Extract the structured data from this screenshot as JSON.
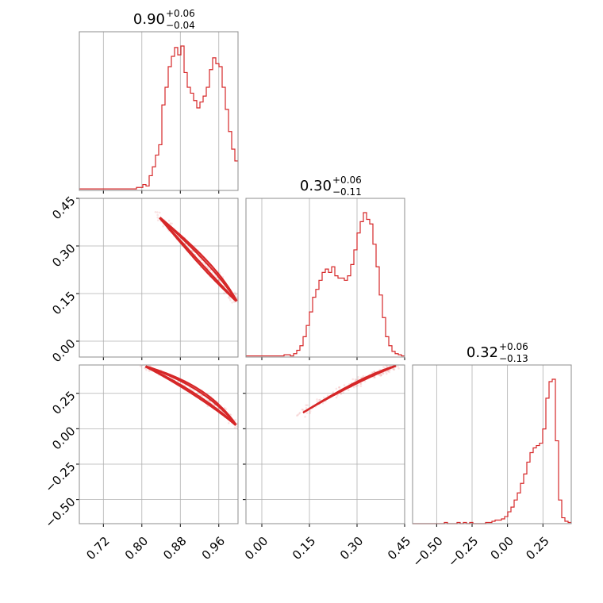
{
  "chart_data": {
    "type": "corner",
    "color": "#d62728",
    "grid": true,
    "params": [
      {
        "axis": "x",
        "title": {
          "main": "0.90",
          "plus": "+0.06",
          "minus": "−0.04"
        },
        "range": [
          0.67,
          1.0
        ],
        "ticks": [
          0.72,
          0.8,
          0.88,
          0.96
        ],
        "tick_labels": [
          "0.72",
          "0.80",
          "0.88",
          "0.96"
        ],
        "hist": {
          "range": [
            0.67,
            1.0
          ],
          "bins": 50,
          "counts": [
            1,
            1,
            1,
            1,
            1,
            1,
            1,
            1,
            1,
            1,
            1,
            1,
            1,
            1,
            1,
            1,
            1,
            1,
            2,
            2,
            4,
            3,
            10,
            16,
            24,
            31,
            58,
            70,
            84,
            91,
            97,
            92,
            98,
            80,
            70,
            66,
            61,
            56,
            60,
            64,
            70,
            82,
            90,
            86,
            84,
            70,
            55,
            40,
            28,
            20
          ]
        }
      },
      {
        "axis": "y",
        "title": {
          "main": "0.30",
          "plus": "+0.06",
          "minus": "−0.11"
        },
        "range": [
          -0.05,
          0.45
        ],
        "ticks": [
          0.0,
          0.15,
          0.3,
          0.45
        ],
        "tick_labels": [
          "0.00",
          "0.15",
          "0.30",
          "0.45"
        ],
        "hist": {
          "range": [
            -0.05,
            0.45
          ],
          "bins": 50,
          "counts": [
            1,
            1,
            1,
            1,
            1,
            1,
            1,
            1,
            1,
            1,
            1,
            1,
            2,
            2,
            1,
            3,
            6,
            10,
            18,
            28,
            40,
            53,
            60,
            68,
            75,
            78,
            75,
            80,
            72,
            70,
            70,
            68,
            72,
            82,
            95,
            110,
            120,
            128,
            122,
            118,
            100,
            80,
            55,
            35,
            18,
            10,
            5,
            3,
            2,
            1
          ]
        }
      },
      {
        "axis": "z",
        "title": {
          "main": "0.32",
          "plus": "+0.06",
          "minus": "−0.13"
        },
        "range": [
          -0.67,
          0.45
        ],
        "ticks": [
          -0.5,
          -0.25,
          0.0,
          0.25
        ],
        "tick_labels": [
          "−0.50",
          "−0.25",
          "0.00",
          "0.25"
        ],
        "hist": {
          "range": [
            -0.67,
            0.45
          ],
          "bins": 50,
          "counts": [
            0,
            0,
            0,
            0,
            0,
            0,
            0,
            0,
            0,
            0,
            1,
            0,
            0,
            0,
            1,
            0,
            1,
            0,
            1,
            0,
            0,
            0,
            0,
            1,
            1,
            2,
            3,
            3,
            4,
            6,
            10,
            14,
            20,
            26,
            34,
            42,
            52,
            60,
            64,
            66,
            68,
            80,
            106,
            120,
            122,
            70,
            20,
            5,
            2,
            1
          ]
        }
      }
    ],
    "curves": {
      "xy": {
        "a": [
          0.83,
          0.4
        ],
        "b": [
          0.95,
          0.22
        ],
        "c": [
          1.0,
          0.12
        ]
      },
      "xz": {
        "a": [
          0.8,
          0.45
        ],
        "b": [
          0.93,
          0.28
        ],
        "c": [
          1.0,
          0.01
        ]
      },
      "yz": {
        "a": [
          0.12,
          0.1
        ],
        "b": [
          0.3,
          0.35
        ],
        "c": [
          0.43,
          0.45
        ]
      }
    }
  }
}
